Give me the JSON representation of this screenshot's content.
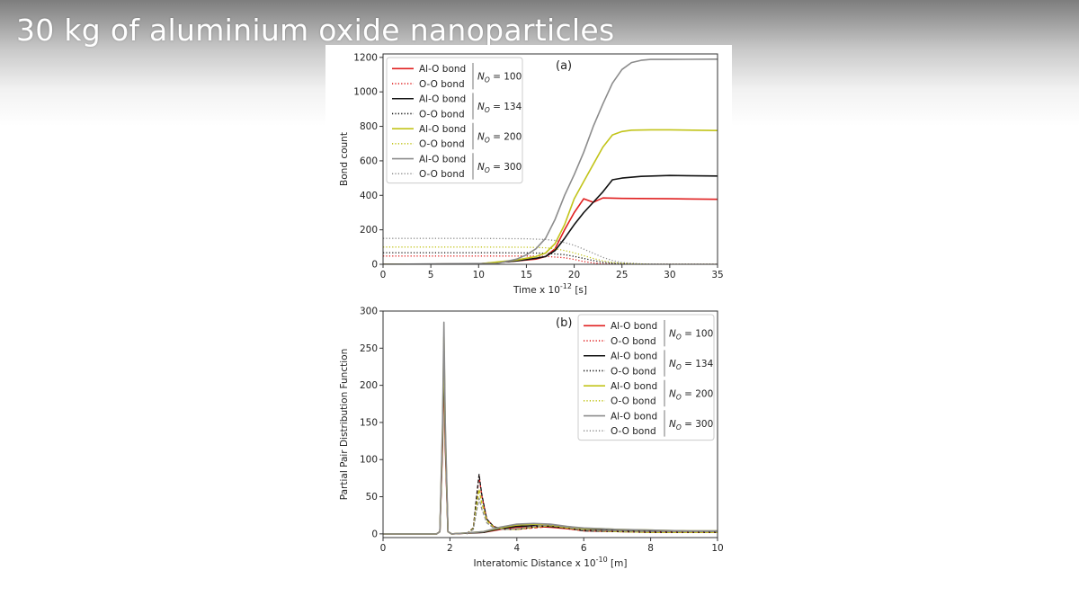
{
  "slide": {
    "title": "30 kg of aluminium oxide nanoparticles"
  },
  "chart_data": [
    {
      "type": "line",
      "panel_label": "(a)",
      "xlabel": "Time x 10",
      "xlabel_exp": "-12",
      "xlabel_unit": " [s]",
      "ylabel": "Bond count",
      "xlim": [
        0,
        35
      ],
      "ylim": [
        0,
        1220
      ],
      "xticks": [
        0,
        5,
        10,
        15,
        20,
        25,
        30,
        35
      ],
      "yticks": [
        0,
        200,
        400,
        600,
        800,
        1000,
        1200
      ],
      "grid": false,
      "legend_position": "top-left",
      "legend_groups": [
        {
          "n_label": "= 100",
          "color": "#e02020",
          "items": [
            "Al-O bond",
            "O-O bond"
          ]
        },
        {
          "n_label": "= 134",
          "color": "#111111",
          "items": [
            "Al-O bond",
            "O-O bond"
          ]
        },
        {
          "n_label": "= 200",
          "color": "#c2c41a",
          "items": [
            "Al-O bond",
            "O-O bond"
          ]
        },
        {
          "n_label": "= 300",
          "color": "#8c8c8c",
          "items": [
            "Al-O bond",
            "O-O bond"
          ]
        }
      ],
      "series": [
        {
          "name": "Al-O bond",
          "group": "N_O = 100",
          "color": "#e02020",
          "dash": "solid",
          "x": [
            0,
            10,
            14,
            16,
            17,
            18,
            19,
            20,
            21,
            22,
            23,
            25,
            30,
            35
          ],
          "y": [
            0,
            2,
            20,
            30,
            45,
            90,
            200,
            300,
            380,
            360,
            385,
            382,
            380,
            377
          ]
        },
        {
          "name": "O-O bond",
          "group": "N_O = 100",
          "color": "#e02020",
          "dash": "dotted",
          "x": [
            0,
            10,
            15,
            17,
            19,
            20,
            21,
            22,
            23,
            24,
            26,
            30,
            35
          ],
          "y": [
            48,
            48,
            48,
            46,
            38,
            28,
            16,
            8,
            3,
            1,
            0,
            0,
            0
          ]
        },
        {
          "name": "Al-O bond",
          "group": "N_O = 134",
          "color": "#111111",
          "dash": "solid",
          "x": [
            0,
            10,
            14,
            16,
            17,
            18,
            19,
            20,
            21,
            22,
            23,
            24,
            25,
            27,
            30,
            35
          ],
          "y": [
            0,
            2,
            20,
            35,
            45,
            80,
            150,
            230,
            300,
            360,
            420,
            490,
            500,
            510,
            515,
            512
          ]
        },
        {
          "name": "O-O bond",
          "group": "N_O = 134",
          "color": "#111111",
          "dash": "dotted",
          "x": [
            0,
            10,
            15,
            17,
            19,
            20,
            21,
            22,
            23,
            24,
            25,
            27,
            30,
            35
          ],
          "y": [
            67,
            67,
            66,
            64,
            56,
            46,
            34,
            22,
            12,
            6,
            2,
            0,
            0,
            0
          ]
        },
        {
          "name": "Al-O bond",
          "group": "N_O = 200",
          "color": "#c2c41a",
          "dash": "solid",
          "x": [
            0,
            10,
            14,
            16,
            17,
            18,
            19,
            20,
            21,
            22,
            23,
            24,
            25,
            26,
            28,
            30,
            35
          ],
          "y": [
            0,
            2,
            25,
            45,
            65,
            120,
            230,
            380,
            480,
            580,
            680,
            750,
            770,
            778,
            780,
            780,
            776
          ]
        },
        {
          "name": "O-O bond",
          "group": "N_O = 200",
          "color": "#c2c41a",
          "dash": "dotted",
          "x": [
            0,
            10,
            15,
            17,
            18,
            19,
            20,
            21,
            22,
            23,
            24,
            26,
            28,
            30,
            35
          ],
          "y": [
            100,
            100,
            99,
            96,
            90,
            80,
            66,
            50,
            34,
            20,
            10,
            3,
            0,
            0,
            0
          ]
        },
        {
          "name": "Al-O bond",
          "group": "N_O = 300",
          "color": "#8c8c8c",
          "dash": "solid",
          "x": [
            0,
            12,
            14,
            15,
            16,
            17,
            18,
            19,
            20,
            21,
            22,
            23,
            24,
            25,
            26,
            27,
            28,
            30,
            35
          ],
          "y": [
            0,
            5,
            30,
            55,
            90,
            150,
            260,
            400,
            520,
            650,
            800,
            930,
            1050,
            1130,
            1170,
            1183,
            1188,
            1188,
            1190
          ]
        },
        {
          "name": "O-O bond",
          "group": "N_O = 300",
          "color": "#8c8c8c",
          "dash": "dotted",
          "x": [
            0,
            10,
            15,
            17,
            18,
            19,
            20,
            21,
            22,
            23,
            24,
            25,
            27,
            30,
            35
          ],
          "y": [
            150,
            150,
            148,
            144,
            138,
            126,
            110,
            88,
            64,
            40,
            22,
            10,
            2,
            0,
            0
          ]
        }
      ]
    },
    {
      "type": "line",
      "panel_label": "(b)",
      "xlabel": "Interatomic Distance x 10",
      "xlabel_exp": "-10",
      "xlabel_unit": " [m]",
      "ylabel": "Partial Pair Distribution Function",
      "xlim": [
        0,
        10
      ],
      "ylim": [
        -5,
        300
      ],
      "xticks": [
        0,
        2,
        4,
        6,
        8,
        10
      ],
      "yticks": [
        0,
        50,
        100,
        150,
        200,
        250,
        300
      ],
      "grid": false,
      "legend_position": "top-right",
      "legend_groups": [
        {
          "n_label": "= 100",
          "color": "#e02020",
          "items": [
            "Al-O bond",
            "O-O bond"
          ]
        },
        {
          "n_label": "= 134",
          "color": "#111111",
          "items": [
            "Al-O bond",
            "O-O bond"
          ]
        },
        {
          "n_label": "= 200",
          "color": "#c2c41a",
          "items": [
            "Al-O bond",
            "O-O bond"
          ]
        },
        {
          "n_label": "= 300",
          "color": "#8c8c8c",
          "items": [
            "Al-O bond",
            "O-O bond"
          ]
        }
      ],
      "series": [
        {
          "name": "Al-O bond",
          "group": "N_O = 100",
          "color": "#e02020",
          "dash": "solid",
          "x": [
            0,
            1.6,
            1.7,
            1.78,
            1.82,
            1.86,
            1.94,
            2.05,
            3.0,
            3.5,
            4.0,
            4.5,
            5.0,
            5.5,
            6.0,
            6.5,
            7.0,
            8.0,
            9.0,
            10.0
          ],
          "y": [
            0,
            0,
            3,
            120,
            230,
            120,
            3,
            0,
            2,
            6,
            9,
            10,
            9,
            7,
            5,
            6,
            5,
            4,
            3,
            3
          ]
        },
        {
          "name": "O-O bond",
          "group": "N_O = 100",
          "color": "#e02020",
          "dash": "dashed",
          "x": [
            2.5,
            2.7,
            2.8,
            2.87,
            2.95,
            3.1,
            3.3,
            3.6,
            4.0,
            4.5,
            5.0,
            5.5,
            6.0,
            7.0,
            8.0,
            9.0,
            10.0
          ],
          "y": [
            0,
            8,
            50,
            78,
            52,
            20,
            10,
            6,
            6,
            8,
            10,
            7,
            4,
            3,
            2,
            2,
            2
          ]
        },
        {
          "name": "Al-O bond",
          "group": "N_O = 134",
          "color": "#111111",
          "dash": "solid",
          "x": [
            0,
            1.6,
            1.7,
            1.78,
            1.82,
            1.86,
            1.94,
            2.05,
            3.0,
            3.5,
            4.0,
            4.5,
            5.0,
            5.5,
            6.0,
            6.5,
            7.0,
            8.0,
            9.0,
            10.0
          ],
          "y": [
            0,
            0,
            3,
            130,
            245,
            130,
            3,
            0,
            2,
            7,
            10,
            11,
            10,
            8,
            6,
            6,
            5,
            4,
            4,
            3
          ]
        },
        {
          "name": "O-O bond",
          "group": "N_O = 134",
          "color": "#111111",
          "dash": "dashed",
          "x": [
            2.5,
            2.7,
            2.8,
            2.87,
            2.95,
            3.1,
            3.3,
            3.6,
            4.0,
            4.5,
            5.0,
            5.5,
            6.0,
            7.0,
            8.0,
            9.0,
            10.0
          ],
          "y": [
            0,
            8,
            52,
            80,
            54,
            20,
            10,
            6,
            6,
            9,
            11,
            8,
            4,
            3,
            2,
            2,
            2
          ]
        },
        {
          "name": "Al-O bond",
          "group": "N_O = 200",
          "color": "#c2c41a",
          "dash": "solid",
          "x": [
            0,
            1.6,
            1.7,
            1.78,
            1.82,
            1.86,
            1.94,
            2.05,
            3.0,
            3.5,
            4.0,
            4.5,
            5.0,
            5.5,
            6.0,
            6.5,
            7.0,
            8.0,
            9.0,
            10.0
          ],
          "y": [
            0,
            0,
            3,
            140,
            265,
            140,
            3,
            0,
            3,
            8,
            12,
            13,
            12,
            9,
            7,
            7,
            6,
            5,
            4,
            4
          ]
        },
        {
          "name": "O-O bond",
          "group": "N_O = 200",
          "color": "#c2c41a",
          "dash": "dashed",
          "x": [
            2.5,
            2.7,
            2.8,
            2.87,
            2.95,
            3.1,
            3.3,
            3.6,
            4.0,
            4.5,
            5.0,
            5.5,
            6.0,
            7.0,
            8.0,
            9.0,
            10.0
          ],
          "y": [
            0,
            7,
            40,
            60,
            42,
            18,
            9,
            6,
            6,
            9,
            11,
            8,
            5,
            3,
            2,
            2,
            2
          ]
        },
        {
          "name": "Al-O bond",
          "group": "N_O = 300",
          "color": "#8c8c8c",
          "dash": "solid",
          "x": [
            0,
            1.6,
            1.7,
            1.78,
            1.82,
            1.86,
            1.94,
            2.05,
            3.0,
            3.5,
            4.0,
            4.5,
            5.0,
            5.5,
            6.0,
            6.5,
            7.0,
            8.0,
            9.0,
            10.0
          ],
          "y": [
            0,
            0,
            3,
            150,
            285,
            150,
            3,
            0,
            3,
            9,
            13,
            14,
            13,
            10,
            8,
            7,
            6,
            5,
            4,
            4
          ]
        },
        {
          "name": "O-O bond",
          "group": "N_O = 300",
          "color": "#8c8c8c",
          "dash": "dashed",
          "x": [
            2.5,
            2.7,
            2.8,
            2.87,
            2.95,
            3.1,
            3.3,
            3.6,
            4.0,
            4.5,
            5.0,
            5.5,
            6.0,
            7.0,
            8.0,
            9.0,
            10.0
          ],
          "y": [
            0,
            6,
            32,
            48,
            34,
            15,
            8,
            6,
            7,
            10,
            12,
            9,
            5,
            4,
            3,
            3,
            3
          ]
        }
      ]
    }
  ]
}
